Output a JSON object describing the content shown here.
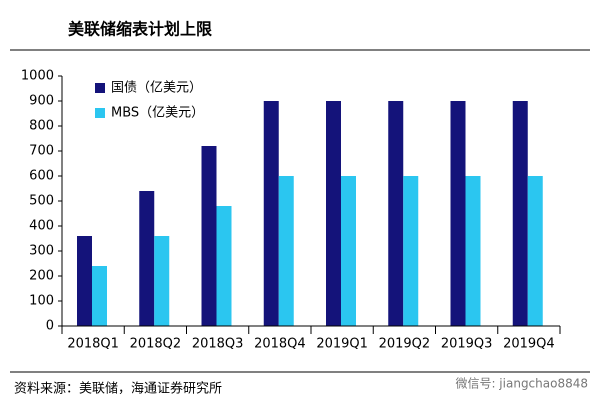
{
  "chart_data": {
    "type": "bar",
    "title": "美联储缩表计划上限",
    "categories": [
      "2018Q1",
      "2018Q2",
      "2018Q3",
      "2018Q4",
      "2019Q1",
      "2019Q2",
      "2019Q3",
      "2019Q4"
    ],
    "series": [
      {
        "name": "国债（亿美元）",
        "color": "#14137a",
        "values": [
          360,
          540,
          720,
          900,
          900,
          900,
          900,
          900
        ]
      },
      {
        "name": "MBS（亿美元）",
        "color": "#2bc6f0",
        "values": [
          240,
          360,
          480,
          600,
          600,
          600,
          600,
          600
        ]
      }
    ],
    "ylim": [
      0,
      1000
    ],
    "yticks": [
      0,
      100,
      200,
      300,
      400,
      500,
      600,
      700,
      800,
      900,
      1000
    ],
    "legend": "upper-left",
    "source": "资料来源：美联储，海通证券研究所",
    "watermark": "微信号: jiangchao8848"
  }
}
